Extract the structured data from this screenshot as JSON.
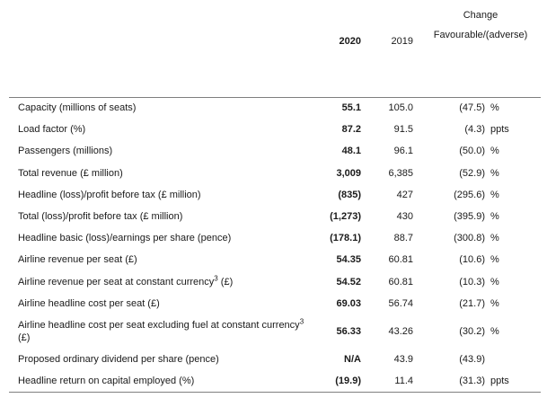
{
  "header": {
    "col_2020": "2020",
    "col_2019": "2019",
    "change_line1": "Change",
    "change_line2": "Favourable/(adverse)"
  },
  "rows": [
    {
      "label": "Capacity (millions of seats)",
      "sup": "",
      "label_tail": "",
      "v2020": "55.1",
      "v2019": "105.0",
      "change": "(47.5)",
      "unit": "%"
    },
    {
      "label": "Load factor (%)",
      "sup": "",
      "label_tail": "",
      "v2020": "87.2",
      "v2019": "91.5",
      "change": "(4.3)",
      "unit": "ppts"
    },
    {
      "label": "Passengers (millions)",
      "sup": "",
      "label_tail": "",
      "v2020": "48.1",
      "v2019": "96.1",
      "change": "(50.0)",
      "unit": "%"
    },
    {
      "label": "Total revenue (£ million)",
      "sup": "",
      "label_tail": "",
      "v2020": "3,009",
      "v2019": "6,385",
      "change": "(52.9)",
      "unit": "%"
    },
    {
      "label": "Headline (loss)/profit before tax (£ million)",
      "sup": "",
      "label_tail": "",
      "v2020": "(835)",
      "v2019": "427",
      "change": "(295.6)",
      "unit": "%"
    },
    {
      "label": "Total (loss)/profit before tax (£ million)",
      "sup": "",
      "label_tail": "",
      "v2020": "(1,273)",
      "v2019": "430",
      "change": "(395.9)",
      "unit": "%"
    },
    {
      "label": "Headline basic (loss)/earnings per share (pence)",
      "sup": "",
      "label_tail": "",
      "v2020": "(178.1)",
      "v2019": "88.7",
      "change": "(300.8)",
      "unit": "%"
    },
    {
      "label": "Airline revenue per seat (£)",
      "sup": "",
      "label_tail": "",
      "v2020": "54.35",
      "v2019": "60.81",
      "change": "(10.6)",
      "unit": "%"
    },
    {
      "label": "Airline revenue per seat at constant currency",
      "sup": "3",
      "label_tail": " (£)",
      "v2020": "54.52",
      "v2019": "60.81",
      "change": "(10.3)",
      "unit": "%"
    },
    {
      "label": "Airline headline cost per seat (£)",
      "sup": "",
      "label_tail": "",
      "v2020": "69.03",
      "v2019": "56.74",
      "change": "(21.7)",
      "unit": "%"
    },
    {
      "label": "Airline headline cost per seat excluding fuel at constant currency",
      "sup": "3",
      "label_tail": " (£)",
      "v2020": "56.33",
      "v2019": "43.26",
      "change": "(30.2)",
      "unit": "%"
    },
    {
      "label": "Proposed ordinary dividend per share (pence)",
      "sup": "",
      "label_tail": "",
      "v2020": "N/A",
      "v2019": "43.9",
      "change": "(43.9)",
      "unit": ""
    },
    {
      "label": "Headline return on capital employed (%)",
      "sup": "",
      "label_tail": "",
      "v2020": "(19.9)",
      "v2019": "11.4",
      "change": "(31.3)",
      "unit": "ppts"
    }
  ]
}
